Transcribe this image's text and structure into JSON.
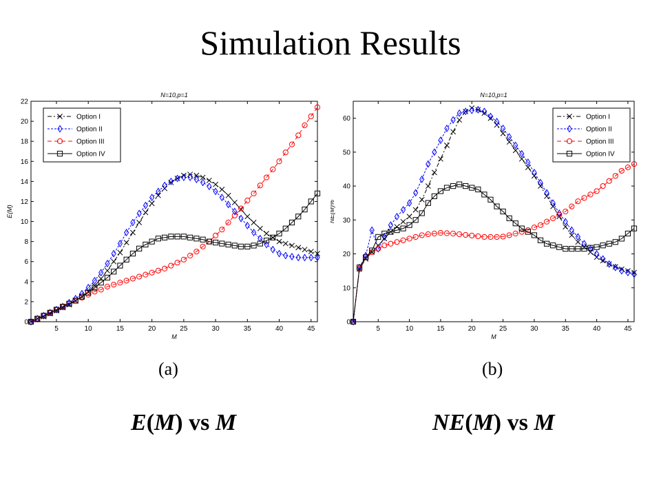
{
  "slide": {
    "title": "Simulation Results",
    "panel_a_label": "(a)",
    "panel_b_label": "(b)",
    "caption_a": {
      "f": "E",
      "open": "(",
      "arg": "M",
      "close": ")",
      "vs": " vs ",
      "var": "M"
    },
    "caption_b": {
      "f": "NE",
      "open": "(",
      "arg": "M",
      "close": ")",
      "vs": " vs ",
      "var": "M"
    }
  },
  "chart_data": [
    {
      "type": "line",
      "title": "N=10,p=1",
      "xlabel": "M",
      "ylabel": "E(M)",
      "xlim": [
        1,
        46
      ],
      "ylim": [
        0,
        22
      ],
      "xticks": [
        5,
        10,
        15,
        20,
        25,
        30,
        35,
        40,
        45
      ],
      "yticks": [
        0,
        2,
        4,
        6,
        8,
        10,
        12,
        14,
        16,
        18,
        20,
        22
      ],
      "grid": false,
      "legend": "top-left",
      "x": [
        1,
        2,
        3,
        4,
        5,
        6,
        7,
        8,
        9,
        10,
        11,
        12,
        13,
        14,
        15,
        16,
        17,
        18,
        19,
        20,
        21,
        22,
        23,
        24,
        25,
        26,
        27,
        28,
        29,
        30,
        31,
        32,
        33,
        34,
        35,
        36,
        37,
        38,
        39,
        40,
        41,
        42,
        43,
        44,
        45,
        46
      ],
      "series": [
        {
          "name": "Option I",
          "color": "#000000",
          "dash": "6,3,2,3",
          "marker": "x",
          "values": [
            0,
            0.3,
            0.5,
            0.8,
            1.1,
            1.4,
            1.7,
            2.1,
            2.5,
            3.0,
            3.6,
            4.3,
            5.1,
            6.0,
            6.9,
            7.9,
            8.9,
            9.9,
            10.9,
            11.8,
            12.6,
            13.3,
            13.9,
            14.3,
            14.6,
            14.7,
            14.6,
            14.4,
            14.1,
            13.7,
            13.2,
            12.6,
            11.9,
            11.2,
            10.5,
            9.9,
            9.3,
            8.8,
            8.4,
            8.0,
            7.8,
            7.6,
            7.4,
            7.2,
            7.0,
            6.8
          ]
        },
        {
          "name": "Option II",
          "color": "#0000ff",
          "dash": "3,2",
          "marker": "diamond",
          "values": [
            0,
            0.3,
            0.6,
            0.9,
            1.2,
            1.5,
            1.9,
            2.3,
            2.8,
            3.4,
            4.1,
            4.9,
            5.8,
            6.8,
            7.8,
            8.9,
            9.9,
            10.8,
            11.6,
            12.4,
            13.0,
            13.6,
            14.0,
            14.3,
            14.4,
            14.4,
            14.2,
            13.9,
            13.5,
            13.0,
            12.4,
            11.7,
            11.0,
            10.3,
            9.6,
            8.9,
            8.3,
            7.7,
            7.2,
            6.8,
            6.6,
            6.5,
            6.4,
            6.4,
            6.4,
            6.4
          ]
        },
        {
          "name": "Option III",
          "color": "#ff0000",
          "dash": "6,4",
          "marker": "circle",
          "values": [
            0,
            0.3,
            0.6,
            0.9,
            1.2,
            1.5,
            1.8,
            2.1,
            2.4,
            2.7,
            3.0,
            3.2,
            3.5,
            3.7,
            3.9,
            4.1,
            4.3,
            4.5,
            4.7,
            4.9,
            5.1,
            5.3,
            5.6,
            5.9,
            6.2,
            6.6,
            7.0,
            7.5,
            8.0,
            8.6,
            9.2,
            9.9,
            10.6,
            11.3,
            12.1,
            12.8,
            13.6,
            14.4,
            15.2,
            16.0,
            16.9,
            17.7,
            18.6,
            19.6,
            20.5,
            21.4
          ]
        },
        {
          "name": "Option IV",
          "color": "#000000",
          "dash": "",
          "marker": "square",
          "values": [
            0,
            0.3,
            0.6,
            0.9,
            1.2,
            1.5,
            1.8,
            2.1,
            2.5,
            2.9,
            3.4,
            3.9,
            4.4,
            5.0,
            5.6,
            6.2,
            6.8,
            7.3,
            7.7,
            8.0,
            8.3,
            8.4,
            8.5,
            8.5,
            8.5,
            8.4,
            8.3,
            8.2,
            8.0,
            7.9,
            7.8,
            7.7,
            7.6,
            7.5,
            7.5,
            7.6,
            7.8,
            8.1,
            8.4,
            8.8,
            9.3,
            9.9,
            10.5,
            11.2,
            12.0,
            12.8
          ]
        }
      ]
    },
    {
      "type": "line",
      "title": "N=10,p=1",
      "xlabel": "M",
      "ylabel": "NE(M)%",
      "xlim": [
        1,
        46
      ],
      "ylim": [
        0,
        65
      ],
      "xticks": [
        5,
        10,
        15,
        20,
        25,
        30,
        35,
        40,
        45
      ],
      "yticks": [
        0,
        10,
        20,
        30,
        40,
        50,
        60
      ],
      "grid": false,
      "legend": "top-right",
      "x": [
        1,
        2,
        3,
        4,
        5,
        6,
        7,
        8,
        9,
        10,
        11,
        12,
        13,
        14,
        15,
        16,
        17,
        18,
        19,
        20,
        21,
        22,
        23,
        24,
        25,
        26,
        27,
        28,
        29,
        30,
        31,
        32,
        33,
        34,
        35,
        36,
        37,
        38,
        39,
        40,
        41,
        42,
        43,
        44,
        45,
        46
      ],
      "series": [
        {
          "name": "Option I",
          "color": "#000000",
          "dash": "6,3,2,3",
          "marker": "x",
          "values": [
            0,
            15.5,
            18.5,
            20.5,
            22.5,
            24.5,
            26.5,
            28.0,
            29.5,
            31.0,
            33.0,
            36.0,
            40.0,
            44.0,
            48.0,
            52.0,
            56.0,
            59.5,
            62.0,
            63.0,
            62.5,
            61.5,
            60.0,
            58.0,
            55.5,
            53.0,
            50.5,
            48.0,
            45.5,
            43.0,
            40.0,
            37.0,
            34.0,
            31.0,
            28.0,
            25.5,
            23.5,
            22.0,
            20.5,
            19.0,
            18.0,
            17.0,
            16.2,
            15.5,
            15.0,
            14.5
          ]
        },
        {
          "name": "Option II",
          "color": "#0000ff",
          "dash": "3,2",
          "marker": "diamond",
          "values": [
            0,
            16.0,
            19.5,
            27.0,
            21.5,
            25.0,
            28.5,
            31.0,
            33.0,
            35.0,
            38.0,
            42.0,
            46.5,
            50.0,
            53.5,
            57.0,
            59.5,
            61.5,
            62.0,
            62.3,
            62.5,
            62.0,
            60.5,
            59.0,
            57.0,
            54.5,
            52.0,
            49.5,
            47.0,
            44.0,
            41.0,
            38.0,
            35.0,
            32.0,
            29.5,
            27.0,
            25.0,
            23.0,
            21.5,
            20.0,
            18.5,
            17.0,
            16.0,
            15.0,
            14.5,
            14.0
          ]
        },
        {
          "name": "Option III",
          "color": "#ff0000",
          "dash": "6,4",
          "marker": "circle",
          "values": [
            0,
            15.5,
            19.0,
            20.5,
            21.5,
            22.5,
            23.0,
            23.5,
            24.0,
            24.5,
            25.0,
            25.5,
            25.8,
            26.0,
            26.2,
            26.1,
            26.0,
            25.8,
            25.6,
            25.4,
            25.2,
            25.0,
            25.0,
            25.0,
            25.1,
            25.5,
            26.0,
            26.5,
            27.0,
            27.8,
            28.5,
            29.5,
            30.5,
            31.5,
            32.5,
            34.0,
            35.5,
            36.5,
            37.5,
            38.5,
            40.0,
            41.5,
            43.0,
            44.5,
            45.5,
            46.5
          ]
        },
        {
          "name": "Option IV",
          "color": "#000000",
          "dash": "",
          "marker": "square",
          "values": [
            0,
            16.0,
            19.0,
            21.0,
            25.0,
            26.0,
            26.5,
            27.0,
            27.5,
            28.5,
            30.0,
            32.0,
            35.0,
            37.0,
            38.5,
            39.5,
            40.0,
            40.5,
            40.0,
            39.5,
            39.0,
            37.5,
            36.0,
            34.0,
            32.5,
            30.5,
            29.0,
            27.5,
            26.5,
            25.5,
            24.0,
            23.0,
            22.5,
            22.0,
            21.5,
            21.5,
            21.5,
            21.5,
            21.8,
            22.0,
            22.5,
            23.0,
            23.5,
            24.5,
            26.0,
            27.5
          ]
        }
      ]
    }
  ]
}
